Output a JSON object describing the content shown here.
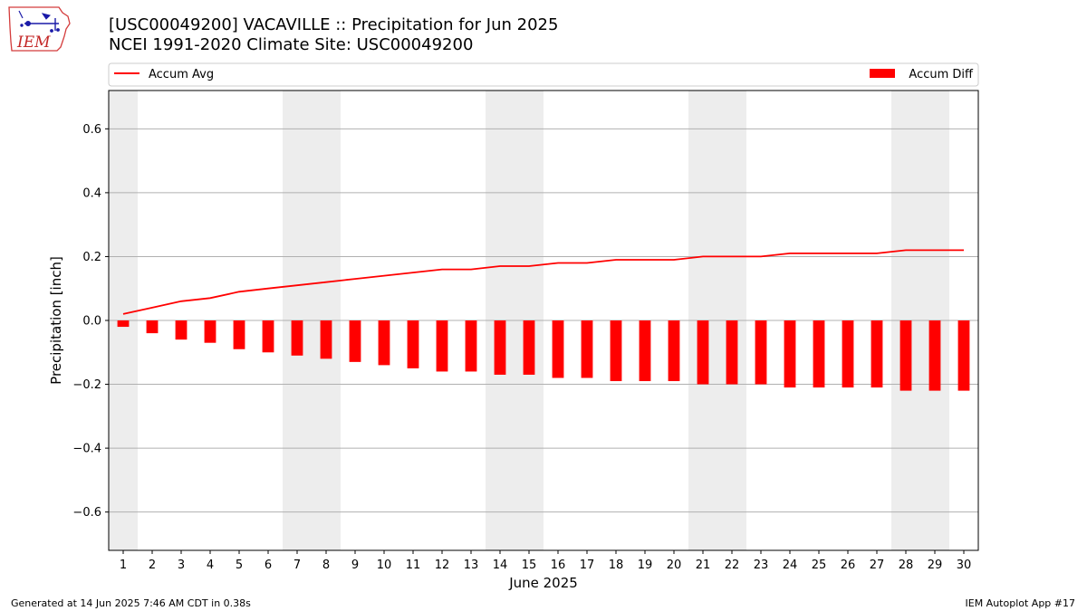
{
  "header": {
    "title": "[USC00049200] VACAVILLE :: Precipitation for Jun 2025",
    "subtitle": "NCEI 1991-2020 Climate Site: USC00049200",
    "logo_text": "IEM"
  },
  "footer": {
    "left": "Generated at 14 Jun 2025 7:46 AM CDT in 0.38s",
    "right": "IEM Autoplot App #17"
  },
  "chart_data": {
    "type": "bar",
    "title": "[USC00049200] VACAVILLE :: Precipitation for Jun 2025",
    "subtitle": "NCEI 1991-2020 Climate Site: USC00049200",
    "xlabel": "June 2025",
    "ylabel": "Precipitation [inch]",
    "ylim": [
      -0.72,
      0.72
    ],
    "yticks": [
      -0.6,
      -0.4,
      -0.2,
      0.0,
      0.2,
      0.4,
      0.6
    ],
    "ytick_labels": [
      "−0.6",
      "−0.4",
      "−0.2",
      "0.0",
      "0.2",
      "0.4",
      "0.6"
    ],
    "x": [
      1,
      2,
      3,
      4,
      5,
      6,
      7,
      8,
      9,
      10,
      11,
      12,
      13,
      14,
      15,
      16,
      17,
      18,
      19,
      20,
      21,
      22,
      23,
      24,
      25,
      26,
      27,
      28,
      29,
      30
    ],
    "x_tick_labels": [
      "1",
      "2",
      "3",
      "4",
      "5",
      "6",
      "7",
      "8",
      "9",
      "10",
      "11",
      "12",
      "13",
      "14",
      "15",
      "16",
      "17",
      "18",
      "19",
      "20",
      "21",
      "22",
      "23",
      "24",
      "25",
      "26",
      "27",
      "28",
      "29",
      "30"
    ],
    "weekend_days": [
      1,
      7,
      8,
      14,
      15,
      21,
      22,
      28,
      29
    ],
    "grid": true,
    "legend_placement": "top (above plot)",
    "series": [
      {
        "name": "Accum Avg",
        "kind": "line",
        "color": "#ff0000",
        "values": [
          0.02,
          0.04,
          0.06,
          0.07,
          0.09,
          0.1,
          0.11,
          0.12,
          0.13,
          0.14,
          0.15,
          0.16,
          0.16,
          0.17,
          0.17,
          0.18,
          0.18,
          0.19,
          0.19,
          0.19,
          0.2,
          0.2,
          0.2,
          0.21,
          0.21,
          0.21,
          0.21,
          0.22,
          0.22,
          0.22
        ]
      },
      {
        "name": "Accum Diff",
        "kind": "bar",
        "color": "#ff0000",
        "values": [
          -0.02,
          -0.04,
          -0.06,
          -0.07,
          -0.09,
          -0.1,
          -0.11,
          -0.12,
          -0.13,
          -0.14,
          -0.15,
          -0.16,
          -0.16,
          -0.17,
          -0.17,
          -0.18,
          -0.18,
          -0.19,
          -0.19,
          -0.19,
          -0.2,
          -0.2,
          -0.2,
          -0.21,
          -0.21,
          -0.21,
          -0.21,
          -0.22,
          -0.22,
          -0.22
        ]
      }
    ]
  }
}
